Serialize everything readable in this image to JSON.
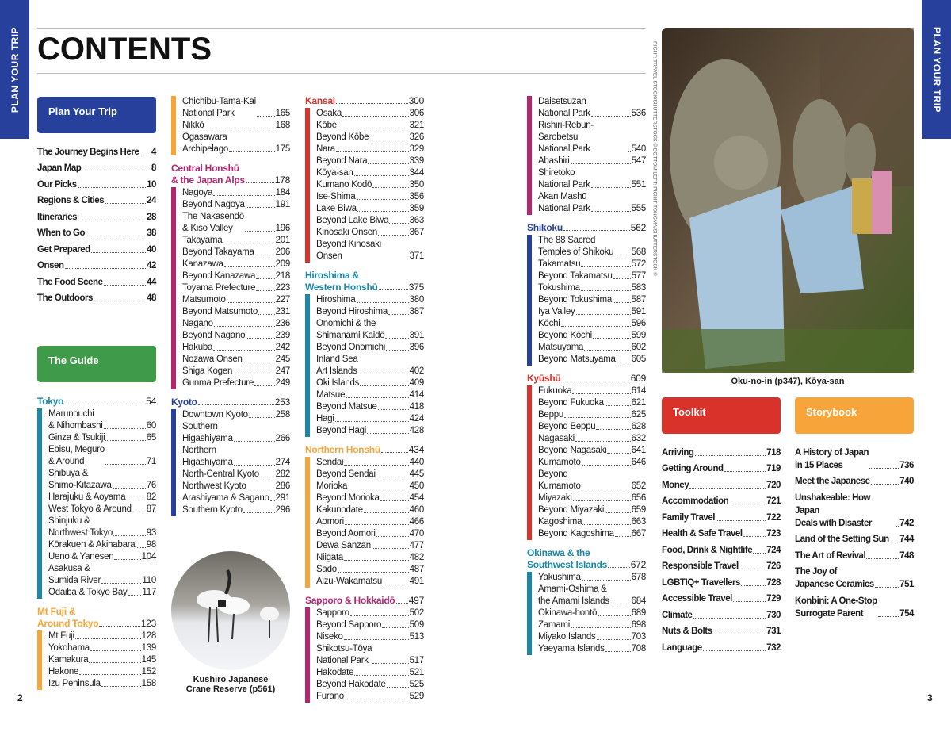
{
  "side_tab": "PLAN YOUR TRIP",
  "title": "CONTENTS",
  "photo_credit": "RIGHT: TRAVEL STOCK/SHUTTERSTOCK © BOTTOM LEFT: PICHIT TONGMA/SHUTTERSTOCK ©",
  "plan": {
    "label": "Plan Your Trip",
    "color": "#27409c",
    "items": [
      [
        "The Journey Begins Here",
        "4"
      ],
      [
        "Japan Map",
        "8"
      ],
      [
        "Our Picks",
        "10"
      ],
      [
        "Regions & Cities",
        "24"
      ],
      [
        "Itineraries",
        "28"
      ],
      [
        "When to Go",
        "38"
      ],
      [
        "Get Prepared",
        "40"
      ],
      [
        "Onsen",
        "42"
      ],
      [
        "The Food Scene",
        "44"
      ],
      [
        "The Outdoors",
        "48"
      ]
    ]
  },
  "guide": {
    "label": "The Guide",
    "color": "#3f9a4a"
  },
  "columns": [
    [
      {
        "heading": "Tokyo",
        "page": "54",
        "color": "#1a86a8",
        "items": [
          [
            "Marunouchi\n& Nihombashi",
            "60"
          ],
          [
            "Ginza & Tsukiji",
            "65"
          ],
          [
            "Ebisu, Meguro\n& Around",
            "71"
          ],
          [
            "Shibuya &\nShimo-Kitazawa",
            "76"
          ],
          [
            "Harajuku & Aoyama",
            "82"
          ],
          [
            "West Tokyo & Around",
            "87"
          ],
          [
            "Shinjuku &\nNorthwest Tokyo",
            "93"
          ],
          [
            "Kōrakuen & Akihabara",
            "98"
          ],
          [
            "Ueno & Yanesen",
            "104"
          ],
          [
            "Asakusa &\nSumida River",
            "110"
          ],
          [
            "Odaiba & Tokyo Bay",
            "117"
          ]
        ]
      },
      {
        "heading": "Mt Fuji &\nAround Tokyo",
        "page": "123",
        "color": "#f7a43a",
        "items": [
          [
            "Mt Fuji",
            "128"
          ],
          [
            "Yokohama",
            "139"
          ],
          [
            "Kamakura",
            "145"
          ],
          [
            "Hakone",
            "152"
          ],
          [
            "Izu Peninsula",
            "158"
          ]
        ]
      }
    ],
    [
      {
        "heading": "",
        "page": "",
        "color": "#f7a43a",
        "items": [
          [
            "Chichibu-Tama-Kai\nNational Park",
            "165"
          ],
          [
            "Nikkō",
            "168"
          ],
          [
            "Ogasawara\nArchipelago",
            "175"
          ]
        ]
      },
      {
        "heading": "Central Honshū\n& the Japan Alps",
        "page": "178",
        "color": "#b5246f",
        "items": [
          [
            "Nagoya",
            "184"
          ],
          [
            "Beyond Nagoya",
            "191"
          ],
          [
            "The Nakasendō\n& Kiso Valley",
            "196"
          ],
          [
            "Takayama",
            "201"
          ],
          [
            "Beyond Takayama",
            "206"
          ],
          [
            "Kanazawa",
            "209"
          ],
          [
            "Beyond Kanazawa",
            "218"
          ],
          [
            "Toyama Prefecture",
            "223"
          ],
          [
            "Matsumoto",
            "227"
          ],
          [
            "Beyond Matsumoto",
            "231"
          ],
          [
            "Nagano",
            "236"
          ],
          [
            "Beyond Nagano",
            "239"
          ],
          [
            "Hakuba",
            "242"
          ],
          [
            "Nozawa Onsen",
            "245"
          ],
          [
            "Shiga Kogen",
            "247"
          ],
          [
            "Gunma Prefecture",
            "249"
          ]
        ]
      },
      {
        "heading": "Kyoto",
        "page": "253",
        "color": "#27409c",
        "items": [
          [
            "Downtown Kyoto",
            "258"
          ],
          [
            "Southern\nHigashiyama",
            "266"
          ],
          [
            "Northern\nHigashiyama",
            "274"
          ],
          [
            "North-Central Kyoto",
            "282"
          ],
          [
            "Northwest Kyoto",
            "286"
          ],
          [
            "Arashiyama & Sagano",
            "291"
          ],
          [
            "Southern Kyoto",
            "296"
          ]
        ]
      }
    ],
    [
      {
        "heading": "Kansai",
        "page": "300",
        "color": "#d8322a",
        "items": [
          [
            "Osaka",
            "306"
          ],
          [
            "Kōbe",
            "321"
          ],
          [
            "Beyond Kōbe",
            "326"
          ],
          [
            "Nara",
            "329"
          ],
          [
            "Beyond Nara",
            "339"
          ],
          [
            "Kōya-san",
            "344"
          ],
          [
            "Kumano Kodō",
            "350"
          ],
          [
            "Ise-Shima",
            "356"
          ],
          [
            "Lake Biwa",
            "359"
          ],
          [
            "Beyond Lake Biwa",
            "363"
          ],
          [
            "Kinosaki Onsen",
            "367"
          ],
          [
            "Beyond Kinosaki Onsen",
            "371"
          ]
        ]
      },
      {
        "heading": "Hiroshima &\nWestern Honshū",
        "page": "375",
        "color": "#1a86a8",
        "items": [
          [
            "Hiroshima",
            "380"
          ],
          [
            "Beyond Hiroshima",
            "387"
          ],
          [
            "Onomichi & the\nShimanami Kaidō",
            "391"
          ],
          [
            "Beyond Onomichi",
            "396"
          ],
          [
            "Inland Sea\nArt Islands",
            "402"
          ],
          [
            "Oki Islands",
            "409"
          ],
          [
            "Matsue",
            "414"
          ],
          [
            "Beyond Matsue",
            "418"
          ],
          [
            "Hagi",
            "424"
          ],
          [
            "Beyond Hagi",
            "428"
          ]
        ]
      },
      {
        "heading": "Northern Honshū",
        "page": "434",
        "color": "#f7a43a",
        "items": [
          [
            "Sendai",
            "440"
          ],
          [
            "Beyond Sendai",
            "445"
          ],
          [
            "Morioka",
            "450"
          ],
          [
            "Beyond Morioka",
            "454"
          ],
          [
            "Kakunodate",
            "460"
          ],
          [
            "Aomori",
            "466"
          ],
          [
            "Beyond Aomori",
            "470"
          ],
          [
            "Dewa Sanzan",
            "477"
          ],
          [
            "Niigata",
            "482"
          ],
          [
            "Sado",
            "487"
          ],
          [
            "Aizu-Wakamatsu",
            "491"
          ]
        ]
      },
      {
        "heading": "Sapporo & Hokkaidō",
        "page": "497",
        "color": "#b5246f",
        "items": [
          [
            "Sapporo",
            "502"
          ],
          [
            "Beyond Sapporo",
            "509"
          ],
          [
            "Niseko",
            "513"
          ],
          [
            "Shikotsu-Tōya\nNational Park",
            "517"
          ],
          [
            "Hakodate",
            "521"
          ],
          [
            "Beyond Hakodate",
            "525"
          ],
          [
            "Furano",
            "529"
          ]
        ]
      }
    ],
    [
      {
        "heading": "",
        "page": "",
        "color": "#b5246f",
        "items": [
          [
            "Daisetsuzan\nNational Park",
            "536"
          ],
          [
            "Rishiri-Rebun-Sarobetsu\nNational Park",
            "540"
          ],
          [
            "Abashiri",
            "547"
          ],
          [
            "Shiretoko\nNational Park",
            "551"
          ],
          [
            "Akan Mashū\nNational Park",
            "555"
          ]
        ]
      },
      {
        "heading": "Shikoku",
        "page": "562",
        "color": "#27409c",
        "items": [
          [
            "The 88 Sacred\nTemples of Shikoku",
            "568"
          ],
          [
            "Takamatsu",
            "572"
          ],
          [
            "Beyond Takamatsu",
            "577"
          ],
          [
            "Tokushima",
            "583"
          ],
          [
            "Beyond Tokushima",
            "587"
          ],
          [
            "Iya Valley",
            "591"
          ],
          [
            "Kōchi",
            "596"
          ],
          [
            "Beyond Kōchi",
            "599"
          ],
          [
            "Matsuyama",
            "602"
          ],
          [
            "Beyond Matsuyama",
            "605"
          ]
        ]
      },
      {
        "heading": "Kyūshū",
        "page": "609",
        "color": "#d8322a",
        "items": [
          [
            "Fukuoka",
            "614"
          ],
          [
            "Beyond Fukuoka",
            "621"
          ],
          [
            "Beppu",
            "625"
          ],
          [
            "Beyond Beppu",
            "628"
          ],
          [
            "Nagasaki",
            "632"
          ],
          [
            "Beyond Nagasaki",
            "641"
          ],
          [
            "Kumamoto",
            "646"
          ],
          [
            "Beyond\nKumamoto",
            "652"
          ],
          [
            "Miyazaki",
            "656"
          ],
          [
            "Beyond Miyazaki",
            "659"
          ],
          [
            "Kagoshima",
            "663"
          ],
          [
            "Beyond Kagoshima",
            "667"
          ]
        ]
      },
      {
        "heading": "Okinawa & the\nSouthwest Islands",
        "page": "672",
        "color": "#1a86a8",
        "items": [
          [
            "Yakushima",
            "678"
          ],
          [
            "Amami-Ōshima &\nthe Amami Islands",
            "684"
          ],
          [
            "Okinawa-hontō",
            "689"
          ],
          [
            "Zamami",
            "698"
          ],
          [
            "Miyako Islands",
            "703"
          ],
          [
            "Yaeyama Islands",
            "708"
          ]
        ]
      }
    ]
  ],
  "toolkit": {
    "label": "Toolkit",
    "color": "#d8322a",
    "items": [
      [
        "Arriving",
        "718"
      ],
      [
        "Getting Around",
        "719"
      ],
      [
        "Money",
        "720"
      ],
      [
        "Accommodation",
        "721"
      ],
      [
        "Family Travel",
        "722"
      ],
      [
        "Health & Safe Travel",
        "723"
      ],
      [
        "Food, Drink & Nightlife",
        "724"
      ],
      [
        "Responsible Travel",
        "726"
      ],
      [
        "LGBTIQ+ Travellers",
        "728"
      ],
      [
        "Accessible Travel",
        "729"
      ],
      [
        "Climate",
        "730"
      ],
      [
        "Nuts & Bolts",
        "731"
      ],
      [
        "Language",
        "732"
      ]
    ]
  },
  "storybook": {
    "label": "Storybook",
    "color": "#f7a43a",
    "items": [
      [
        "A History of Japan\nin 15 Places",
        "736"
      ],
      [
        "Meet the Japanese",
        "740"
      ],
      [
        "Unshakeable: How Japan\nDeals with Disaster",
        "742"
      ],
      [
        "Land of the Setting Sun",
        "744"
      ],
      [
        "The Art of Revival",
        "748"
      ],
      [
        "The Joy of\nJapanese Ceramics",
        "751"
      ],
      [
        "Konbini: A One-Stop\nSurrogate Parent",
        "754"
      ]
    ]
  },
  "photo_caption": "Oku-no-in (p347), Kōya-san",
  "crane_caption": "Kushiro Japanese\nCrane Reserve (p561)",
  "page_left": "2",
  "page_right": "3"
}
